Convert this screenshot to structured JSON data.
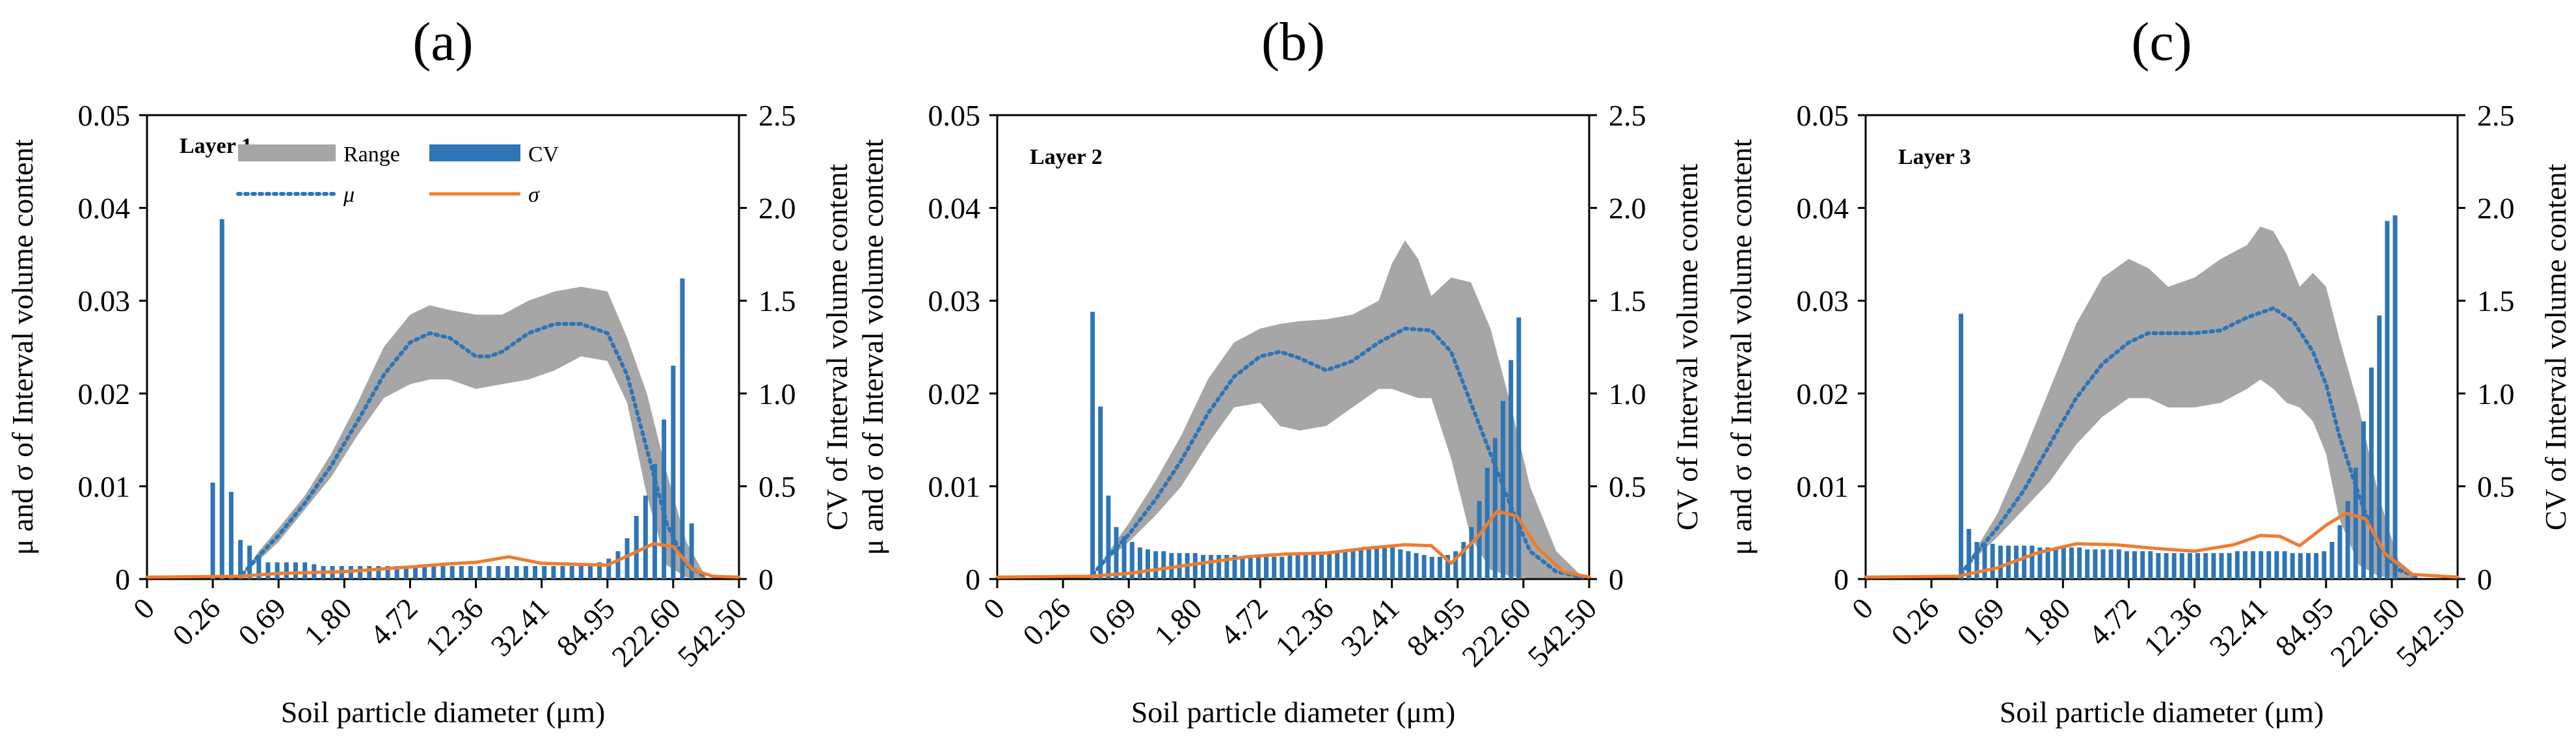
{
  "figure": {
    "panels_count": 3
  },
  "legend": {
    "range_label": "Range",
    "cv_label": "CV",
    "mu_label": "μ",
    "sigma_label": "σ",
    "range_color": "#a6a6a6",
    "cv_color": "#2e75b6",
    "mu_color": "#2e75b6",
    "sigma_color": "#ed7d31"
  },
  "chart_data": [
    {
      "type": "line",
      "panel_label": "(a)",
      "layer_label": "Layer 1",
      "xlabel": "Soil particle diameter (μm)",
      "ylabel": "μ and σ of Interval volume content",
      "ylabel2": "CV of Interval volume content",
      "x_tick_labels": [
        "0",
        "0.26",
        "0.69",
        "1.80",
        "4.72",
        "12.36",
        "32.41",
        "84.95",
        "222.60",
        "542.50"
      ],
      "x_range": [
        0,
        9
      ],
      "ylim": [
        0,
        0.05
      ],
      "y_ticks": [
        "0",
        "0.01",
        "0.02",
        "0.03",
        "0.04",
        "0.05"
      ],
      "y2lim": [
        0,
        2.5
      ],
      "y2_ticks": [
        "0",
        "0.5",
        "1.0",
        "1.5",
        "2.0",
        "2.5"
      ],
      "series": [
        {
          "name": "Range",
          "kind": "band",
          "x": [
            1.45,
            1.7,
            2.0,
            2.4,
            2.8,
            3.2,
            3.6,
            4.0,
            4.3,
            4.6,
            5.0,
            5.4,
            5.8,
            6.2,
            6.6,
            7.0,
            7.3,
            7.6,
            7.9,
            8.2,
            8.5
          ],
          "upper": [
            0.0005,
            0.003,
            0.0055,
            0.009,
            0.0135,
            0.019,
            0.025,
            0.0285,
            0.0295,
            0.029,
            0.0285,
            0.0285,
            0.03,
            0.031,
            0.0315,
            0.031,
            0.026,
            0.02,
            0.0115,
            0.004,
            0.0002
          ],
          "lower": [
            0.0005,
            0.002,
            0.004,
            0.0075,
            0.011,
            0.0155,
            0.0195,
            0.021,
            0.0215,
            0.0215,
            0.0205,
            0.021,
            0.0215,
            0.0225,
            0.024,
            0.0235,
            0.019,
            0.009,
            0.0015,
            0.0002,
            0.0001
          ]
        },
        {
          "name": "μ",
          "kind": "line",
          "x": [
            1.45,
            1.7,
            2.0,
            2.4,
            2.8,
            3.2,
            3.6,
            4.0,
            4.3,
            4.6,
            5.0,
            5.2,
            5.4,
            5.8,
            6.2,
            6.6,
            7.0,
            7.3,
            7.6,
            7.9,
            8.2,
            8.5
          ],
          "y": [
            0.0005,
            0.0025,
            0.0047,
            0.0082,
            0.0122,
            0.017,
            0.022,
            0.0255,
            0.0265,
            0.026,
            0.024,
            0.024,
            0.0245,
            0.0265,
            0.0275,
            0.0275,
            0.0265,
            0.022,
            0.014,
            0.006,
            0.0015,
            0.0002
          ]
        },
        {
          "name": "σ",
          "kind": "line",
          "x": [
            0,
            1.4,
            2.0,
            3.0,
            4.0,
            4.5,
            5.0,
            5.5,
            6.0,
            6.5,
            7.0,
            7.4,
            7.7,
            8.0,
            8.3,
            8.6,
            9.0
          ],
          "y": [
            0.0002,
            0.0003,
            0.0006,
            0.0008,
            0.0013,
            0.0016,
            0.0018,
            0.0024,
            0.0017,
            0.0016,
            0.0015,
            0.0028,
            0.0038,
            0.0035,
            0.001,
            0.0003,
            0.0002
          ]
        },
        {
          "name": "CV",
          "kind": "bar",
          "axis": "right",
          "x": [
            1.0,
            1.14,
            1.28,
            1.42,
            1.56,
            1.7,
            1.84,
            1.98,
            2.12,
            2.26,
            2.4,
            2.54,
            2.68,
            2.82,
            2.96,
            3.1,
            3.24,
            3.38,
            3.52,
            3.66,
            3.8,
            3.94,
            4.08,
            4.22,
            4.36,
            4.5,
            4.64,
            4.78,
            4.92,
            5.06,
            5.2,
            5.34,
            5.48,
            5.62,
            5.76,
            5.9,
            6.04,
            6.18,
            6.32,
            6.46,
            6.6,
            6.74,
            6.88,
            7.02,
            7.16,
            7.3,
            7.44,
            7.58,
            7.72,
            7.86,
            8.0,
            8.14,
            8.28
          ],
          "values": [
            0.52,
            1.94,
            0.47,
            0.21,
            0.18,
            0.13,
            0.09,
            0.09,
            0.09,
            0.09,
            0.09,
            0.08,
            0.07,
            0.07,
            0.07,
            0.07,
            0.07,
            0.07,
            0.07,
            0.07,
            0.07,
            0.07,
            0.07,
            0.07,
            0.07,
            0.07,
            0.07,
            0.07,
            0.07,
            0.07,
            0.07,
            0.07,
            0.07,
            0.07,
            0.07,
            0.07,
            0.07,
            0.07,
            0.07,
            0.07,
            0.07,
            0.07,
            0.09,
            0.11,
            0.15,
            0.22,
            0.34,
            0.45,
            0.62,
            0.86,
            1.15,
            1.62,
            0.3
          ]
        }
      ]
    },
    {
      "type": "line",
      "panel_label": "(b)",
      "layer_label": "Layer 2",
      "xlabel": "Soil particle diameter (μm)",
      "ylabel": "μ and σ of Interval volume content",
      "ylabel2": "CV of Interval volume content",
      "x_tick_labels": [
        "0",
        "0.26",
        "0.69",
        "1.80",
        "4.72",
        "12.36",
        "32.41",
        "84.95",
        "222.60",
        "542.50"
      ],
      "x_range": [
        0,
        9
      ],
      "ylim": [
        0,
        0.05
      ],
      "y_ticks": [
        "0",
        "0.01",
        "0.02",
        "0.03",
        "0.04",
        "0.05"
      ],
      "y2lim": [
        0,
        2.5
      ],
      "y2_ticks": [
        "0",
        "0.5",
        "1.0",
        "1.5",
        "2.0",
        "2.5"
      ],
      "series": [
        {
          "name": "Range",
          "kind": "band",
          "x": [
            1.45,
            1.7,
            2.0,
            2.4,
            2.8,
            3.2,
            3.6,
            4.0,
            4.3,
            4.6,
            5.0,
            5.4,
            5.8,
            6.0,
            6.2,
            6.4,
            6.6,
            6.9,
            7.2,
            7.5,
            7.8,
            8.1,
            8.5,
            8.9
          ],
          "upper": [
            0.0005,
            0.003,
            0.006,
            0.0105,
            0.0155,
            0.0215,
            0.0255,
            0.027,
            0.0275,
            0.0278,
            0.028,
            0.0285,
            0.03,
            0.034,
            0.0365,
            0.0345,
            0.0305,
            0.0325,
            0.032,
            0.027,
            0.019,
            0.01,
            0.003,
            0.0002
          ],
          "lower": [
            0.0005,
            0.0022,
            0.004,
            0.0068,
            0.01,
            0.0145,
            0.0185,
            0.019,
            0.0165,
            0.016,
            0.0165,
            0.0185,
            0.0205,
            0.0205,
            0.02,
            0.0195,
            0.0195,
            0.013,
            0.0045,
            0.001,
            0.0003,
            0.0001,
            0.0001,
            0.0001
          ]
        },
        {
          "name": "μ",
          "kind": "line",
          "x": [
            1.45,
            1.7,
            2.0,
            2.4,
            2.8,
            3.2,
            3.6,
            4.0,
            4.3,
            4.6,
            5.0,
            5.4,
            5.8,
            6.2,
            6.6,
            6.9,
            7.2,
            7.5,
            7.8,
            8.1,
            8.5,
            8.9
          ],
          "y": [
            0.0005,
            0.0025,
            0.0048,
            0.0085,
            0.0128,
            0.0178,
            0.0218,
            0.024,
            0.0245,
            0.0238,
            0.0225,
            0.0235,
            0.0255,
            0.027,
            0.0268,
            0.0245,
            0.019,
            0.0135,
            0.008,
            0.003,
            0.0008,
            0.0002
          ]
        },
        {
          "name": "σ",
          "kind": "line",
          "x": [
            0,
            1.4,
            2.0,
            2.6,
            3.2,
            3.8,
            4.4,
            5.0,
            5.6,
            6.2,
            6.6,
            6.9,
            7.3,
            7.6,
            7.9,
            8.2,
            8.6,
            9.0
          ],
          "y": [
            0.0002,
            0.0003,
            0.0006,
            0.0012,
            0.0018,
            0.0024,
            0.0027,
            0.0028,
            0.0033,
            0.0037,
            0.0036,
            0.0017,
            0.0045,
            0.0073,
            0.0068,
            0.0035,
            0.0008,
            0.0002
          ]
        },
        {
          "name": "CV",
          "kind": "bar",
          "axis": "right",
          "x": [
            1.45,
            1.57,
            1.69,
            1.81,
            1.93,
            2.05,
            2.17,
            2.29,
            2.41,
            2.53,
            2.65,
            2.77,
            2.89,
            3.01,
            3.13,
            3.25,
            3.37,
            3.49,
            3.61,
            3.73,
            3.85,
            3.97,
            4.09,
            4.21,
            4.33,
            4.45,
            4.57,
            4.69,
            4.81,
            4.93,
            5.05,
            5.17,
            5.29,
            5.41,
            5.53,
            5.65,
            5.77,
            5.89,
            6.01,
            6.13,
            6.25,
            6.37,
            6.49,
            6.61,
            6.73,
            6.85,
            6.97,
            7.09,
            7.21,
            7.33,
            7.45,
            7.57,
            7.69,
            7.81,
            7.93
          ],
          "values": [
            1.44,
            0.93,
            0.45,
            0.28,
            0.23,
            0.2,
            0.17,
            0.16,
            0.15,
            0.15,
            0.14,
            0.14,
            0.14,
            0.14,
            0.13,
            0.13,
            0.13,
            0.13,
            0.13,
            0.12,
            0.12,
            0.12,
            0.12,
            0.12,
            0.12,
            0.13,
            0.13,
            0.13,
            0.13,
            0.14,
            0.14,
            0.15,
            0.15,
            0.16,
            0.16,
            0.16,
            0.17,
            0.17,
            0.17,
            0.16,
            0.15,
            0.14,
            0.13,
            0.12,
            0.12,
            0.13,
            0.15,
            0.2,
            0.28,
            0.42,
            0.6,
            0.76,
            0.96,
            1.18,
            1.41
          ]
        }
      ]
    },
    {
      "type": "line",
      "panel_label": "(c)",
      "layer_label": "Layer 3",
      "xlabel": "Soil particle diameter (μm)",
      "ylabel": "μ and σ of Interval volume content",
      "ylabel2": "CV of Interval volume content",
      "x_tick_labels": [
        "0",
        "0.26",
        "0.69",
        "1.80",
        "4.72",
        "12.36",
        "32.41",
        "84.95",
        "222.60",
        "542.50"
      ],
      "x_range": [
        0,
        9
      ],
      "ylim": [
        0,
        0.05
      ],
      "y_ticks": [
        "0",
        "0.01",
        "0.02",
        "0.03",
        "0.04",
        "0.05"
      ],
      "y2lim": [
        0,
        2.5
      ],
      "y2_ticks": [
        "0",
        "0.5",
        "1.0",
        "1.5",
        "2.0",
        "2.5"
      ],
      "series": [
        {
          "name": "Range",
          "kind": "band",
          "x": [
            1.45,
            1.7,
            2.0,
            2.4,
            2.8,
            3.2,
            3.6,
            4.0,
            4.3,
            4.6,
            5.0,
            5.4,
            5.8,
            6.0,
            6.2,
            6.4,
            6.6,
            6.8,
            7.0,
            7.2,
            7.5,
            7.8,
            8.1,
            8.4
          ],
          "upper": [
            0.0005,
            0.0035,
            0.007,
            0.0135,
            0.0205,
            0.0275,
            0.0325,
            0.0345,
            0.0335,
            0.0315,
            0.0325,
            0.0345,
            0.036,
            0.038,
            0.0375,
            0.035,
            0.0315,
            0.033,
            0.0315,
            0.026,
            0.0185,
            0.009,
            0.002,
            0.0002
          ],
          "lower": [
            0.0005,
            0.0025,
            0.0045,
            0.0075,
            0.0105,
            0.0145,
            0.0175,
            0.0195,
            0.0195,
            0.0185,
            0.0185,
            0.019,
            0.0205,
            0.0215,
            0.0205,
            0.019,
            0.0185,
            0.017,
            0.0135,
            0.0065,
            0.0015,
            0.0003,
            0.0001,
            0.0001
          ]
        },
        {
          "name": "μ",
          "kind": "line",
          "x": [
            1.45,
            1.7,
            2.0,
            2.4,
            2.8,
            3.2,
            3.6,
            4.0,
            4.3,
            4.6,
            5.0,
            5.4,
            5.8,
            6.2,
            6.5,
            6.8,
            7.0,
            7.2,
            7.5,
            7.8,
            8.1,
            8.4
          ],
          "y": [
            0.0005,
            0.003,
            0.0055,
            0.0095,
            0.0145,
            0.0195,
            0.0232,
            0.0255,
            0.0265,
            0.0265,
            0.0265,
            0.0268,
            0.0282,
            0.0292,
            0.0278,
            0.0245,
            0.021,
            0.0155,
            0.009,
            0.0035,
            0.001,
            0.0002
          ]
        },
        {
          "name": "σ",
          "kind": "line",
          "x": [
            0,
            1.4,
            2.0,
            2.6,
            3.2,
            3.8,
            4.4,
            5.0,
            5.6,
            6.0,
            6.3,
            6.6,
            7.0,
            7.3,
            7.6,
            7.9,
            8.3,
            9.0
          ],
          "y": [
            0.0002,
            0.0003,
            0.0012,
            0.0028,
            0.0038,
            0.0037,
            0.0033,
            0.003,
            0.0037,
            0.0047,
            0.0046,
            0.0036,
            0.0058,
            0.0071,
            0.0065,
            0.0027,
            0.0005,
            0.0002
          ]
        },
        {
          "name": "CV",
          "kind": "bar",
          "axis": "right",
          "x": [
            1.45,
            1.57,
            1.69,
            1.81,
            1.93,
            2.05,
            2.17,
            2.29,
            2.41,
            2.53,
            2.65,
            2.77,
            2.89,
            3.01,
            3.13,
            3.25,
            3.37,
            3.49,
            3.61,
            3.73,
            3.85,
            3.97,
            4.09,
            4.21,
            4.33,
            4.45,
            4.57,
            4.69,
            4.81,
            4.93,
            5.05,
            5.17,
            5.29,
            5.41,
            5.53,
            5.65,
            5.77,
            5.89,
            6.01,
            6.13,
            6.25,
            6.37,
            6.49,
            6.61,
            6.73,
            6.85,
            6.97,
            7.09,
            7.21,
            7.33,
            7.45,
            7.57,
            7.69,
            7.81,
            7.93,
            8.05
          ],
          "values": [
            1.43,
            0.27,
            0.2,
            0.19,
            0.19,
            0.18,
            0.18,
            0.18,
            0.18,
            0.18,
            0.17,
            0.17,
            0.17,
            0.17,
            0.17,
            0.17,
            0.16,
            0.16,
            0.16,
            0.16,
            0.16,
            0.15,
            0.15,
            0.15,
            0.15,
            0.14,
            0.14,
            0.14,
            0.14,
            0.14,
            0.14,
            0.14,
            0.14,
            0.14,
            0.14,
            0.15,
            0.15,
            0.15,
            0.15,
            0.15,
            0.15,
            0.15,
            0.14,
            0.14,
            0.14,
            0.14,
            0.15,
            0.2,
            0.29,
            0.42,
            0.6,
            0.85,
            1.14,
            1.42,
            1.93,
            1.96
          ]
        }
      ]
    }
  ]
}
